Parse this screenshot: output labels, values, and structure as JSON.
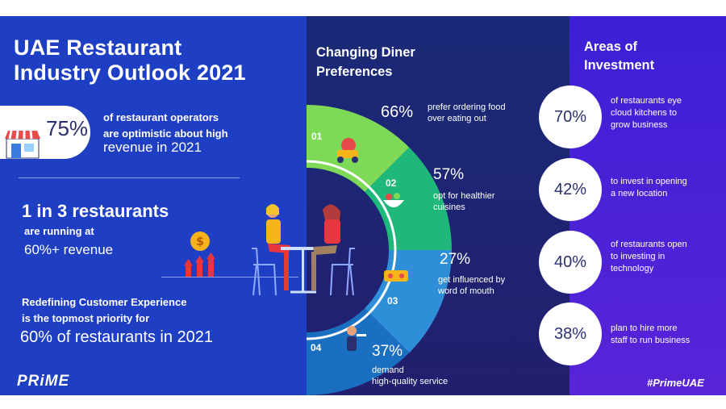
{
  "left": {
    "title_line1": "UAE Restaurant",
    "title_line2": "Industry Outlook 2021",
    "stat1": {
      "value": "75%",
      "line1": "of restaurant operators",
      "line2": "are optimistic about high",
      "line3": "revenue in 2021"
    },
    "stat2": {
      "headline": "1 in 3 restaurants",
      "line": "are running at",
      "value": "60%+ revenue"
    },
    "stat3": {
      "line1": "Redefining Customer Experience",
      "line2": "is the topmost priority for",
      "value": "60% of restaurants in 2021"
    },
    "logo": "PRiME"
  },
  "middle": {
    "title_line1": "Changing Diner",
    "title_line2": "Preferences",
    "items": [
      {
        "num": "01",
        "pct": "66%",
        "line1": "prefer ordering food",
        "line2": "over eating out",
        "color": "#7ed957"
      },
      {
        "num": "02",
        "pct": "57%",
        "line1": "opt for healthier",
        "line2": "cuisines",
        "color": "#1db87a"
      },
      {
        "num": "03",
        "pct": "27%",
        "line1": "get influenced by",
        "line2": "word of mouth",
        "color": "#2e8fd8"
      },
      {
        "num": "04",
        "pct": "37%",
        "line1": "demand",
        "line2": "high-quality service",
        "color": "#1b6fc0"
      }
    ]
  },
  "right": {
    "title_line1": "Areas of",
    "title_line2": "Investment",
    "items": [
      {
        "pct": "70%",
        "line1": "of restaurants eye",
        "line2": "cloud kitchens to",
        "line3": "grow business"
      },
      {
        "pct": "42%",
        "line1": "to invest in opening",
        "line2": "a new location",
        "line3": ""
      },
      {
        "pct": "40%",
        "line1": "of restaurants open",
        "line2": "to investing in",
        "line3": "technology"
      },
      {
        "pct": "38%",
        "line1": "plan to hire more",
        "line2": "staff to run business",
        "line3": ""
      }
    ],
    "hashtag": "#PrimeUAE"
  }
}
